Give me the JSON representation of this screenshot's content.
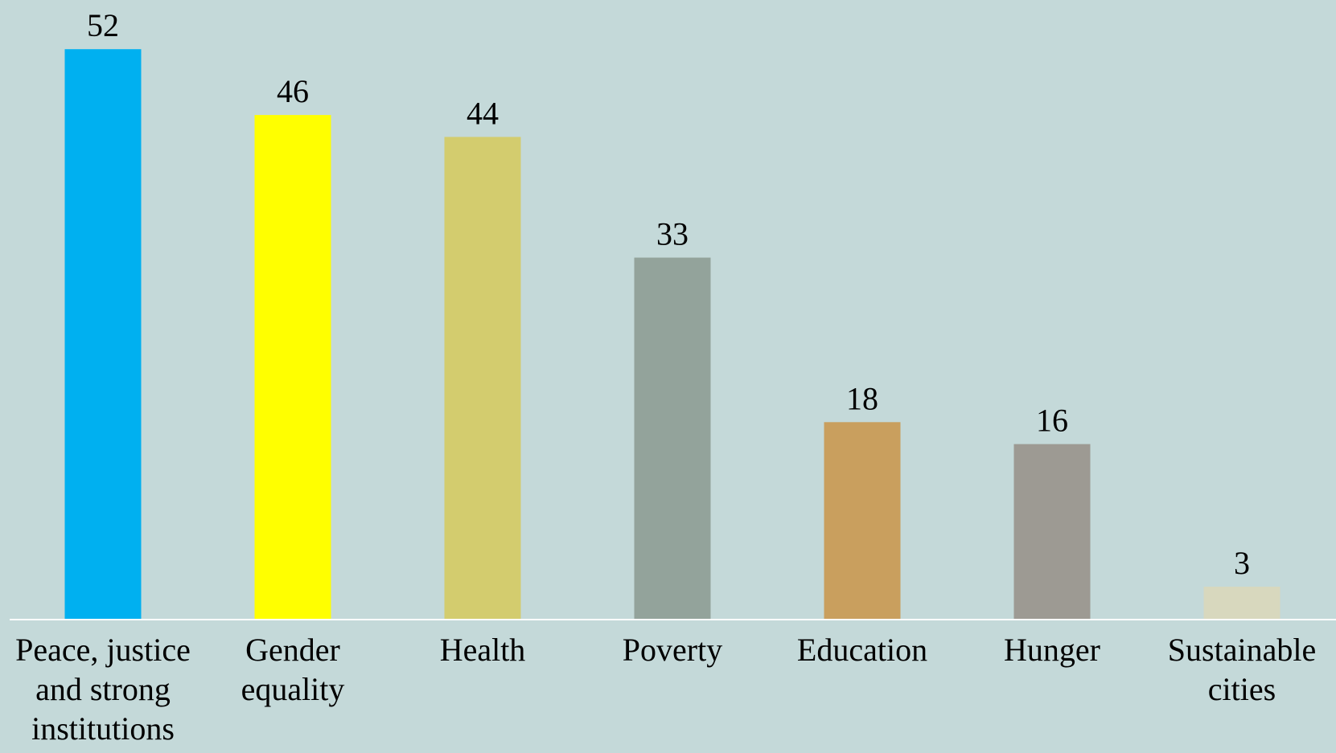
{
  "chart_data": {
    "type": "bar",
    "title": "",
    "xlabel": "",
    "ylabel": "",
    "ylim": [
      0,
      55
    ],
    "grid": false,
    "legend": "none",
    "categories": [
      "Peace, justice and strong institutions",
      "Gender equality",
      "Health",
      "Poverty",
      "Education",
      "Hunger",
      "Sustainable cities"
    ],
    "category_lines": [
      [
        "Peace, justice",
        "and strong",
        "institutions"
      ],
      [
        "Gender",
        "equality"
      ],
      [
        "Health"
      ],
      [
        "Poverty"
      ],
      [
        "Education"
      ],
      [
        "Hunger"
      ],
      [
        "Sustainable",
        "cities"
      ]
    ],
    "values": [
      52,
      46,
      44,
      33,
      18,
      16,
      3
    ],
    "value_labels": [
      "52",
      "46",
      "44",
      "33",
      "18",
      "16",
      "3"
    ],
    "bar_colors": [
      "#00b0f0",
      "#ffff00",
      "#d3cc6e",
      "#93a39b",
      "#c99f5e",
      "#9d9a93",
      "#d8d8be"
    ]
  },
  "colors": {
    "background": "#c4d9d9",
    "axis_line": "#ffffff"
  }
}
